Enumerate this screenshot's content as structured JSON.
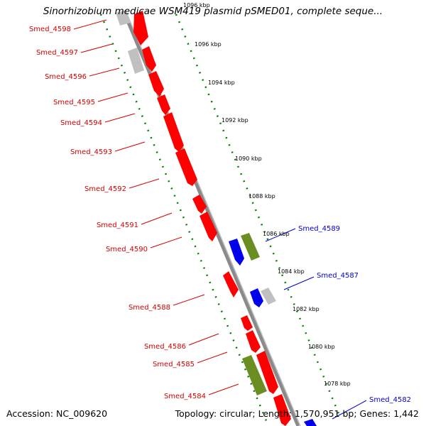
{
  "title": "Sinorhizobium medicae WSM419 plasmid pSMED01, complete seque...",
  "footer": {
    "accession": "Accession: NC_009620",
    "summary": "Topology: circular; Length: 1,570,951 bp; Genes: 1,442"
  },
  "colors": {
    "forward_gene": "#ff0000",
    "reverse_gene": "#0000ee",
    "other_gene": "#c0c0c0",
    "rna_gene": "#6b8e23",
    "backbone": "#808080",
    "ruler": "#008000",
    "red_label": "#d40000",
    "blue_label": "#0000cc"
  },
  "ticks": [
    "1096 kbp",
    "1096 kbp",
    "1094 kbp",
    "1092 kbp",
    "1090 kbp",
    "1088 kbp",
    "1086 kbp",
    "1084 kbp",
    "1082 kbp",
    "1080 kbp",
    "1078 kbp"
  ],
  "left_labels": [
    "Smed_4598",
    "Smed_4597",
    "Smed_4596",
    "Smed_4595",
    "Smed_4594",
    "Smed_4593",
    "Smed_4592",
    "Smed_4591",
    "Smed_4590",
    "Smed_4588",
    "Smed_4586",
    "Smed_4585",
    "Smed_4584"
  ],
  "right_labels": [
    "Smed_4589",
    "Smed_4587",
    "Smed_4582"
  ]
}
